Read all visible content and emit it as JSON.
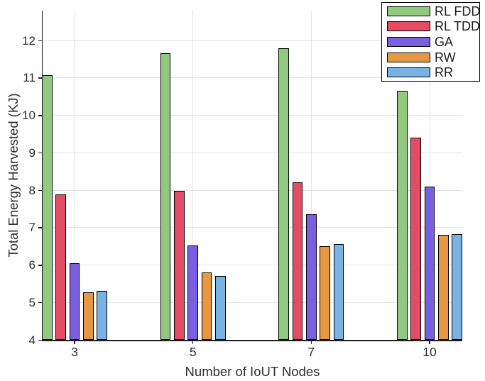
{
  "chart_data": {
    "type": "bar",
    "title": "",
    "xlabel": "Number of IoUT Nodes",
    "ylabel": "Total Energy Harvested (KJ)",
    "categories": [
      "3",
      "5",
      "7",
      "10"
    ],
    "yticks": [
      "4",
      "5",
      "6",
      "7",
      "8",
      "9",
      "10",
      "11",
      "12"
    ],
    "ylim": [
      4,
      12.8
    ],
    "grid": true,
    "legend_position": "top-right",
    "bar_edge_color": "#000000",
    "series": [
      {
        "name": "RL FDD",
        "color": "#93C97E",
        "values": [
          11.08,
          11.66,
          11.79,
          10.66
        ]
      },
      {
        "name": "RL TDD",
        "color": "#E44C65",
        "values": [
          7.88,
          7.98,
          8.21,
          9.4
        ]
      },
      {
        "name": "GA",
        "color": "#7B5FE1",
        "values": [
          6.05,
          6.53,
          7.35,
          8.1
        ]
      },
      {
        "name": "RW",
        "color": "#E89743",
        "values": [
          5.28,
          5.8,
          6.5,
          6.8
        ]
      },
      {
        "name": "RR",
        "color": "#79B3E4",
        "values": [
          5.31,
          5.7,
          6.56,
          6.83
        ]
      }
    ]
  },
  "style": {
    "background": "#ffffff",
    "grid_color": "#e3e3e3",
    "axis_color": "#1c1c1c",
    "text_color": "#2e2e2e"
  }
}
